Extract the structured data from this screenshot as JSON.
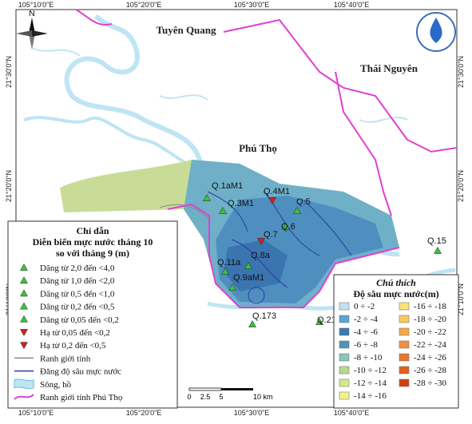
{
  "map": {
    "north": "N",
    "coordinates": {
      "top": [
        "105°10'0\"E",
        "105°20'0\"E",
        "105°30'0\"E",
        "105°40'0\"E"
      ],
      "bottom": [
        "105°10'0\"E",
        "105°20'0\"E",
        "105°30'0\"E",
        "105°40'0\"E"
      ],
      "left": [
        "21°30'0\"N",
        "21°20'0\"N",
        "21°10'0\"N"
      ],
      "right": [
        "21°30'0\"N",
        "21°20'0\"N",
        "21°10'0\"N"
      ]
    },
    "provinces": [
      "Tuyên Quang",
      "Thái Nguyên",
      "Phú Thọ"
    ],
    "stations": [
      {
        "label": "Q.1aM1",
        "trend": "up"
      },
      {
        "label": "Q.3M1",
        "trend": "up"
      },
      {
        "label": "Q.4M1",
        "trend": "down"
      },
      {
        "label": "Q.5",
        "trend": "up"
      },
      {
        "label": "Q.6",
        "trend": "up"
      },
      {
        "label": "Q.7",
        "trend": "down"
      },
      {
        "label": "Q.8a",
        "trend": "up"
      },
      {
        "label": "Q.11a",
        "trend": "up"
      },
      {
        "label": "Q.9aM1",
        "trend": "up"
      },
      {
        "label": "Q.173",
        "trend": "up"
      },
      {
        "label": "Q.21",
        "trend": "up"
      },
      {
        "label": "Q.15",
        "trend": "up"
      }
    ]
  },
  "legend": {
    "title": "Chỉ dẫn",
    "subtitle_1": "Diễn biến mực nước tháng 10",
    "subtitle_2": "so với tháng 9 (m)",
    "items": [
      {
        "label": "Dâng từ 2,0 đến <4,0",
        "symbol": "up"
      },
      {
        "label": "Dâng từ 1,0 đến <2,0",
        "symbol": "up"
      },
      {
        "label": "Dâng từ 0,5 đến <1,0",
        "symbol": "up"
      },
      {
        "label": "Dâng từ 0,2 đến <0,5",
        "symbol": "up"
      },
      {
        "label": "Dâng từ 0,05 đến <0,2",
        "symbol": "up"
      },
      {
        "label": "Hạ từ 0,05 đến <0,2",
        "symbol": "down"
      },
      {
        "label": "Hạ từ 0,2 đến <0,5",
        "symbol": "down"
      },
      {
        "label": "Ranh giới tỉnh",
        "symbol": "gray-line"
      },
      {
        "label": "Đăng độ sâu mực nước",
        "symbol": "blue-line"
      },
      {
        "label": "Sông, hồ",
        "symbol": "water"
      },
      {
        "label": "Ranh giới tỉnh Phú Thọ",
        "symbol": "pink-line"
      }
    ]
  },
  "depth_legend": {
    "title": "Chú thích",
    "subtitle": "Độ sâu mực nước(m)",
    "items": [
      {
        "label": "0 ÷ -2",
        "color": "#bfe2f2"
      },
      {
        "label": "-2 ÷ -4",
        "color": "#5aa6d2"
      },
      {
        "label": "-4 ÷ -6",
        "color": "#3a7ab4"
      },
      {
        "label": "-6 ÷ -8",
        "color": "#4e94b8"
      },
      {
        "label": "-8 ÷ -10",
        "color": "#8cc6b4"
      },
      {
        "label": "-10 ÷ -12",
        "color": "#b6d88c"
      },
      {
        "label": "-12 ÷ -14",
        "color": "#d6e88a"
      },
      {
        "label": "-14 ÷ -16",
        "color": "#f2f28a"
      },
      {
        "label": "-16 ÷ -18",
        "color": "#f8e274"
      },
      {
        "label": "-18 ÷ -20",
        "color": "#f8c862"
      },
      {
        "label": "-20 ÷ -22",
        "color": "#f4aa4a"
      },
      {
        "label": "-22 ÷ -24",
        "color": "#f09040"
      },
      {
        "label": "-24 ÷ -26",
        "color": "#e87830"
      },
      {
        "label": "-26 ÷ -28",
        "color": "#e06020"
      },
      {
        "label": "-28 ÷ -30",
        "color": "#d04010"
      }
    ]
  },
  "scale": {
    "labels": [
      "0",
      "2.5",
      "5",
      "10 km"
    ]
  }
}
